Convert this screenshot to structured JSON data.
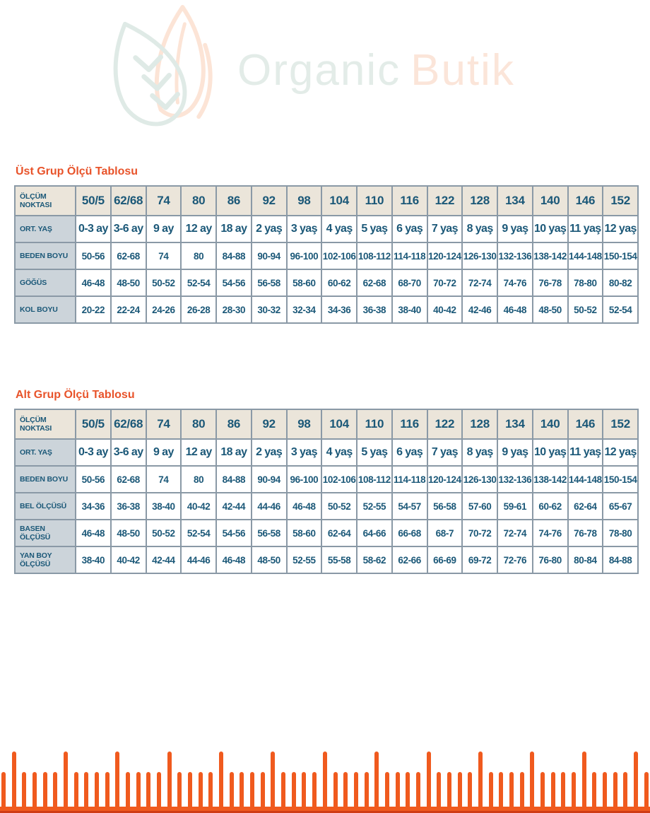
{
  "logo": {
    "brand_primary": "Organic",
    "brand_secondary": "Butik"
  },
  "colors": {
    "page_bg": "#ffffff",
    "title_orange": "#e8532a",
    "table_text": "#1b5878",
    "table_border": "#8a99a6",
    "header_bg": "#ebe5da",
    "label_bg": "#ccd4da",
    "cell_bg": "#ffffff",
    "ruler_orange": "#f05a1e",
    "ruler_dark": "#cf3c15",
    "leaf_teal": "#dfeae6",
    "leaf_peach": "#fce4d6",
    "logo_text_teal": "#e3ece8",
    "logo_text_peach": "#fbe5d9"
  },
  "upper_table": {
    "title": "Üst Grup Ölçü Tablosu",
    "rows": [
      {
        "label": "ÖLÇÜM NOKTASI",
        "values": [
          "50/5",
          "62/68",
          "74",
          "80",
          "86",
          "92",
          "98",
          "104",
          "110",
          "116",
          "122",
          "128",
          "134",
          "140",
          "146",
          "152"
        ]
      },
      {
        "label": "ORT. YAŞ",
        "values": [
          "0-3 ay",
          "3-6 ay",
          "9 ay",
          "12 ay",
          "18 ay",
          "2 yaş",
          "3 yaş",
          "4 yaş",
          "5 yaş",
          "6 yaş",
          "7 yaş",
          "8 yaş",
          "9 yaş",
          "10 yaş",
          "11 yaş",
          "12 yaş"
        ]
      },
      {
        "label": "BEDEN BOYU",
        "values": [
          "50-56",
          "62-68",
          "74",
          "80",
          "84-88",
          "90-94",
          "96-100",
          "102-106",
          "108-112",
          "114-118",
          "120-124",
          "126-130",
          "132-136",
          "138-142",
          "144-148",
          "150-154"
        ]
      },
      {
        "label": "GÖĞÜS",
        "values": [
          "46-48",
          "48-50",
          "50-52",
          "52-54",
          "54-56",
          "56-58",
          "58-60",
          "60-62",
          "62-68",
          "68-70",
          "70-72",
          "72-74",
          "74-76",
          "76-78",
          "78-80",
          "80-82"
        ]
      },
      {
        "label": "KOL BOYU",
        "values": [
          "20-22",
          "22-24",
          "24-26",
          "26-28",
          "28-30",
          "30-32",
          "32-34",
          "34-36",
          "36-38",
          "38-40",
          "40-42",
          "42-46",
          "46-48",
          "48-50",
          "50-52",
          "52-54"
        ]
      }
    ]
  },
  "lower_table": {
    "title": "Alt Grup Ölçü Tablosu",
    "rows": [
      {
        "label": "ÖLÇÜM NOKTASI",
        "values": [
          "50/5",
          "62/68",
          "74",
          "80",
          "86",
          "92",
          "98",
          "104",
          "110",
          "116",
          "122",
          "128",
          "134",
          "140",
          "146",
          "152"
        ]
      },
      {
        "label": "ORT. YAŞ",
        "values": [
          "0-3 ay",
          "3-6 ay",
          "9 ay",
          "12 ay",
          "18 ay",
          "2 yaş",
          "3 yaş",
          "4 yaş",
          "5 yaş",
          "6 yaş",
          "7 yaş",
          "8 yaş",
          "9 yaş",
          "10 yaş",
          "11 yaş",
          "12 yaş"
        ]
      },
      {
        "label": "BEDEN BOYU",
        "values": [
          "50-56",
          "62-68",
          "74",
          "80",
          "84-88",
          "90-94",
          "96-100",
          "102-106",
          "108-112",
          "114-118",
          "120-124",
          "126-130",
          "132-136",
          "138-142",
          "144-148",
          "150-154"
        ]
      },
      {
        "label": "BEL ÖLÇÜSÜ",
        "values": [
          "34-36",
          "36-38",
          "38-40",
          "40-42",
          "42-44",
          "44-46",
          "46-48",
          "50-52",
          "52-55",
          "54-57",
          "56-58",
          "57-60",
          "59-61",
          "60-62",
          "62-64",
          "65-67"
        ]
      },
      {
        "label": "BASEN ÖLÇÜSÜ",
        "values": [
          "46-48",
          "48-50",
          "50-52",
          "52-54",
          "54-56",
          "56-58",
          "58-60",
          "62-64",
          "64-66",
          "66-68",
          "68-7",
          "70-72",
          "72-74",
          "74-76",
          "76-78",
          "78-80"
        ]
      },
      {
        "label": "YAN BOY ÖLÇÜSÜ",
        "values": [
          "38-40",
          "40-42",
          "42-44",
          "44-46",
          "46-48",
          "48-50",
          "52-55",
          "55-58",
          "58-62",
          "62-66",
          "66-69",
          "69-72",
          "72-76",
          "76-80",
          "80-84",
          "84-88"
        ]
      }
    ]
  },
  "ruler": {
    "tick_count": 63,
    "tall_every": 5,
    "tall_offset": 1
  }
}
